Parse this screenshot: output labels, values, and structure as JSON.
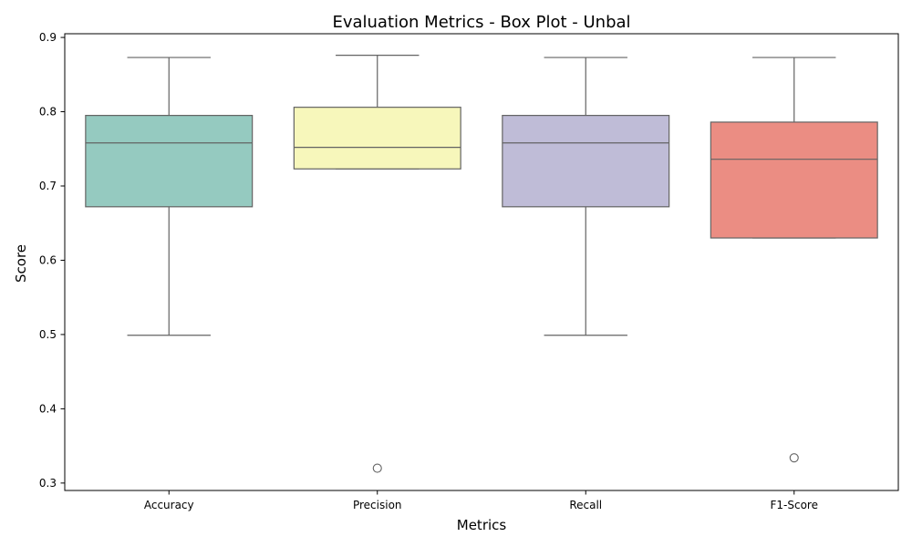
{
  "chart_data": {
    "type": "box",
    "title": "Evaluation Metrics - Box Plot - Unbal",
    "xlabel": "Metrics",
    "ylabel": "Score",
    "ylim": [
      0.29,
      0.905
    ],
    "yticks": [
      0.3,
      0.4,
      0.5,
      0.6,
      0.7,
      0.8,
      0.9
    ],
    "grid": false,
    "categories": [
      "Accuracy",
      "Precision",
      "Recall",
      "F1-Score"
    ],
    "boxes": [
      {
        "category": "Accuracy",
        "whisker_low": 0.499,
        "q1": 0.672,
        "median": 0.758,
        "q3": 0.795,
        "whisker_high": 0.873,
        "outliers": [],
        "color": "#95cac0"
      },
      {
        "category": "Precision",
        "whisker_low": 0.723,
        "q1": 0.723,
        "median": 0.752,
        "q3": 0.806,
        "whisker_high": 0.876,
        "outliers": [
          0.32
        ],
        "color": "#f7f7bb"
      },
      {
        "category": "Recall",
        "whisker_low": 0.499,
        "q1": 0.672,
        "median": 0.758,
        "q3": 0.795,
        "whisker_high": 0.873,
        "outliers": [],
        "color": "#bfbcd7"
      },
      {
        "category": "F1-Score",
        "whisker_low": 0.63,
        "q1": 0.63,
        "median": 0.736,
        "q3": 0.786,
        "whisker_high": 0.873,
        "outliers": [
          0.334
        ],
        "color": "#eb8d83"
      }
    ],
    "line_color": "#636363",
    "axis_color": "#000000"
  }
}
